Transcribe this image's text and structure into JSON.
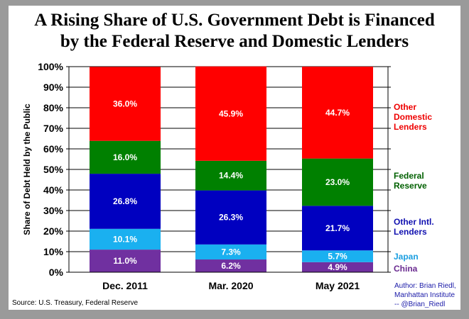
{
  "chart_data": {
    "type": "bar",
    "stacked": true,
    "title": "A Rising Share of U.S. Government Debt is Financed by the Federal Reserve and Domestic Lenders",
    "title_lines": [
      "A Rising Share of U.S. Government Debt is Financed",
      "by the Federal Reserve and Domestic Lenders"
    ],
    "ylabel": "Share of Debt Held by the Public",
    "xlabel": "",
    "ylim": [
      0,
      100
    ],
    "yticks": [
      "0%",
      "10%",
      "20%",
      "30%",
      "40%",
      "50%",
      "60%",
      "70%",
      "80%",
      "90%",
      "100%"
    ],
    "grid": true,
    "legend_placement": "right",
    "categories": [
      "Dec. 2011",
      "Mar. 2020",
      "May 2021"
    ],
    "series": [
      {
        "name": "China",
        "color": "#7030a0",
        "values": [
          11.0,
          6.2,
          4.9
        ],
        "labels": [
          "11.0%",
          "6.2%",
          "4.9%"
        ],
        "legend": [
          "China"
        ]
      },
      {
        "name": "Japan",
        "color": "#1ab0f0",
        "values": [
          10.1,
          7.3,
          5.7
        ],
        "labels": [
          "10.1%",
          "7.3%",
          "5.7%"
        ],
        "legend": [
          "Japan"
        ]
      },
      {
        "name": "Other Intl. Lenders",
        "color": "#0000c0",
        "values": [
          26.8,
          26.3,
          21.7
        ],
        "labels": [
          "26.8%",
          "26.3%",
          "21.7%"
        ],
        "legend": [
          "Other Intl.",
          "Lenders"
        ]
      },
      {
        "name": "Federal Reserve",
        "color": "#008000",
        "values": [
          16.0,
          14.4,
          23.0
        ],
        "labels": [
          "16.0%",
          "14.4%",
          "23.0%"
        ],
        "legend": [
          "Federal",
          "Reserve"
        ]
      },
      {
        "name": "Other Domestic Lenders",
        "color": "#ff0000",
        "values": [
          36.0,
          45.9,
          44.7
        ],
        "labels": [
          "36.0%",
          "45.9%",
          "44.7%"
        ],
        "legend": [
          "Other",
          "Domestic",
          "Lenders"
        ]
      }
    ],
    "legend_colors": [
      "#6a2a90",
      "#1a9ee0",
      "#1010b0",
      "#006000",
      "#ee0000"
    ]
  },
  "source": "Source: U.S. Treasury, Federal Reserve",
  "author": [
    "Author: Brian Riedl,",
    "Manhattan Institute",
    "-- @Brian_Riedl"
  ]
}
